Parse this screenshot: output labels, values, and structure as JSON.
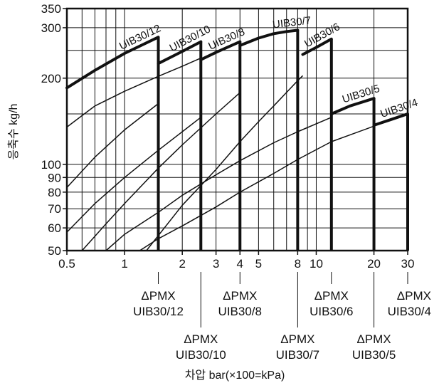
{
  "chart_data": {
    "type": "line",
    "x_scale": "log",
    "y_scale": "log",
    "xlabel": "차압 bar(×100=kPa)",
    "ylabel": "응축수 kg/h",
    "xlim": [
      0.5,
      30
    ],
    "ylim": [
      50,
      350
    ],
    "x_ticks": [
      0.5,
      1,
      2,
      3,
      4,
      5,
      8,
      10,
      20,
      30
    ],
    "x_tick_labels": [
      "0.5",
      "1",
      "2",
      "3",
      "4",
      "5",
      "8",
      "10",
      "20",
      "30"
    ],
    "x_grid": [
      0.5,
      0.6,
      0.7,
      0.8,
      0.9,
      1,
      2,
      3,
      4,
      5,
      6,
      7,
      8,
      9,
      10,
      20,
      30
    ],
    "y_ticks": [
      50,
      60,
      70,
      80,
      90,
      100,
      200,
      300,
      350
    ],
    "y_tick_labels": [
      "50",
      "60",
      "70",
      "80",
      "90",
      "100",
      "200",
      "300",
      "350"
    ],
    "y_grid": [
      50,
      60,
      70,
      80,
      90,
      100,
      150,
      200,
      250,
      300,
      350
    ],
    "grid": true,
    "series": [
      {
        "name": "UIB30/12",
        "pmx": 1.5,
        "x": [
          0.5,
          0.7,
          1.0,
          1.5
        ],
        "y": [
          185,
          213,
          244,
          278
        ],
        "thin_x": [
          0.5,
          0.7,
          1.0,
          1.5
        ],
        "thin_y": [
          83,
          106,
          132,
          163
        ]
      },
      {
        "name": "UIB30/10",
        "pmx": 2.5,
        "x": [
          1.5,
          2.0,
          2.5
        ],
        "y": [
          225,
          248,
          268
        ],
        "thin_x": [
          0.5,
          0.7,
          1.0,
          1.5,
          2.0,
          2.5
        ],
        "thin_y": [
          135,
          160,
          180,
          203,
          220,
          235
        ]
      },
      {
        "name": "UIB30/8",
        "pmx": 4,
        "x": [
          2.5,
          3.0,
          4.0
        ],
        "y": [
          232,
          246,
          268
        ],
        "thin_x": [
          0.5,
          0.7,
          1.0,
          1.5,
          2.0,
          2.5
        ],
        "thin_y": [
          58,
          73,
          90,
          112,
          130,
          146
        ]
      },
      {
        "name": "UIB30/7",
        "pmx": 8,
        "x": [
          4.0,
          5.0,
          6.0,
          7.0,
          8.0
        ],
        "y": [
          260,
          276,
          286,
          291,
          294
        ],
        "thin_x": [
          0.6,
          0.8,
          1.0,
          1.5,
          2.0,
          3.0,
          4.0
        ],
        "thin_y": [
          50,
          62,
          73,
          97,
          117,
          150,
          178
        ]
      },
      {
        "name": "UIB30/6",
        "pmx": 12,
        "x": [
          8.5,
          10,
          12
        ],
        "y": [
          242,
          256,
          274
        ],
        "thin_x": [
          1.3,
          2.0,
          3.0,
          4.0,
          5.0,
          6.0,
          8.0,
          8.5
        ],
        "thin_y": [
          50,
          72,
          96,
          120,
          141,
          160,
          196,
          204
        ]
      },
      {
        "name": "UIB30/5",
        "pmx": 20,
        "x": [
          12,
          15,
          20
        ],
        "y": [
          150,
          160,
          170
        ],
        "thin_x": [
          0.8,
          1.0,
          1.5,
          2.0,
          3.0,
          4.0,
          6.0,
          8.0,
          12.0
        ],
        "thin_y": [
          50,
          57,
          68,
          78,
          92,
          103,
          119,
          130,
          146
        ]
      },
      {
        "name": "UIB30/4",
        "pmx": 30,
        "x": [
          20,
          25,
          30
        ],
        "y": [
          137,
          144,
          150
        ],
        "thin_x": [
          1.2,
          1.5,
          2.0,
          3.0,
          4.0,
          6.0,
          8.0,
          12.0,
          20.0
        ],
        "thin_y": [
          50,
          55,
          61,
          71,
          80,
          93,
          104,
          120,
          136
        ]
      }
    ],
    "pmx_labels": [
      {
        "x": 1.5,
        "row": 1,
        "line1": "ΔPMX",
        "line2": "UIB30/12"
      },
      {
        "x": 2.5,
        "row": 2,
        "line1": "ΔPMX",
        "line2": "UIB30/10"
      },
      {
        "x": 4,
        "row": 1,
        "line1": "ΔPMX",
        "line2": "UIB30/8"
      },
      {
        "x": 8,
        "row": 2,
        "line1": "ΔPMX",
        "line2": "UIB30/7"
      },
      {
        "x": 12,
        "row": 1,
        "line1": "ΔPMX",
        "line2": "UIB30/6"
      },
      {
        "x": 20,
        "row": 2,
        "line1": "ΔPMX",
        "line2": "UIB30/5"
      },
      {
        "x": 30,
        "row": 1,
        "line1": "ΔPMX",
        "line2": "UIB30/4"
      }
    ]
  }
}
